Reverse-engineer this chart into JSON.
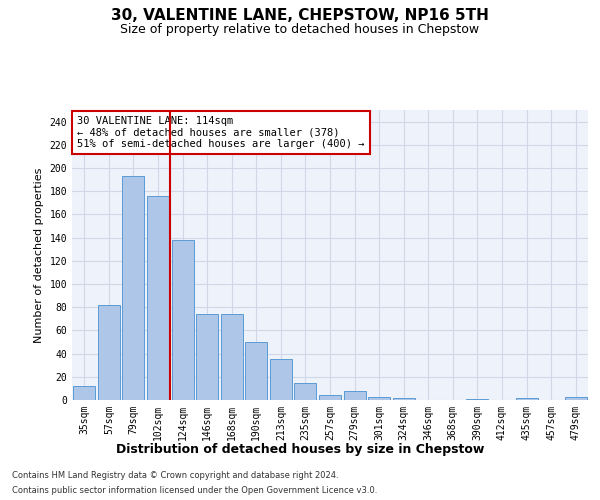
{
  "title1": "30, VALENTINE LANE, CHEPSTOW, NP16 5TH",
  "title2": "Size of property relative to detached houses in Chepstow",
  "xlabel": "Distribution of detached houses by size in Chepstow",
  "ylabel": "Number of detached properties",
  "categories": [
    "35sqm",
    "57sqm",
    "79sqm",
    "102sqm",
    "124sqm",
    "146sqm",
    "168sqm",
    "190sqm",
    "213sqm",
    "235sqm",
    "257sqm",
    "279sqm",
    "301sqm",
    "324sqm",
    "346sqm",
    "368sqm",
    "390sqm",
    "412sqm",
    "435sqm",
    "457sqm",
    "479sqm"
  ],
  "values": [
    12,
    82,
    193,
    176,
    138,
    74,
    74,
    50,
    35,
    15,
    4,
    8,
    3,
    2,
    0,
    0,
    1,
    0,
    2,
    0,
    3
  ],
  "bar_color": "#aec6e8",
  "bar_edge_color": "#5b9bd5",
  "vline_x": 3.5,
  "vline_color": "#cc0000",
  "annotation_text": "30 VALENTINE LANE: 114sqm\n← 48% of detached houses are smaller (378)\n51% of semi-detached houses are larger (400) →",
  "annotation_box_color": "#ffffff",
  "annotation_box_edge": "#cc0000",
  "ylim": [
    0,
    250
  ],
  "yticks": [
    0,
    20,
    40,
    60,
    80,
    100,
    120,
    140,
    160,
    180,
    200,
    220,
    240
  ],
  "grid_color": "#d0d8e8",
  "footer1": "Contains HM Land Registry data © Crown copyright and database right 2024.",
  "footer2": "Contains public sector information licensed under the Open Government Licence v3.0.",
  "bg_color": "#eef2fa",
  "title1_fontsize": 11,
  "title2_fontsize": 9,
  "ylabel_fontsize": 8,
  "xlabel_fontsize": 9,
  "tick_fontsize": 7,
  "annot_fontsize": 7.5,
  "footer_fontsize": 6
}
